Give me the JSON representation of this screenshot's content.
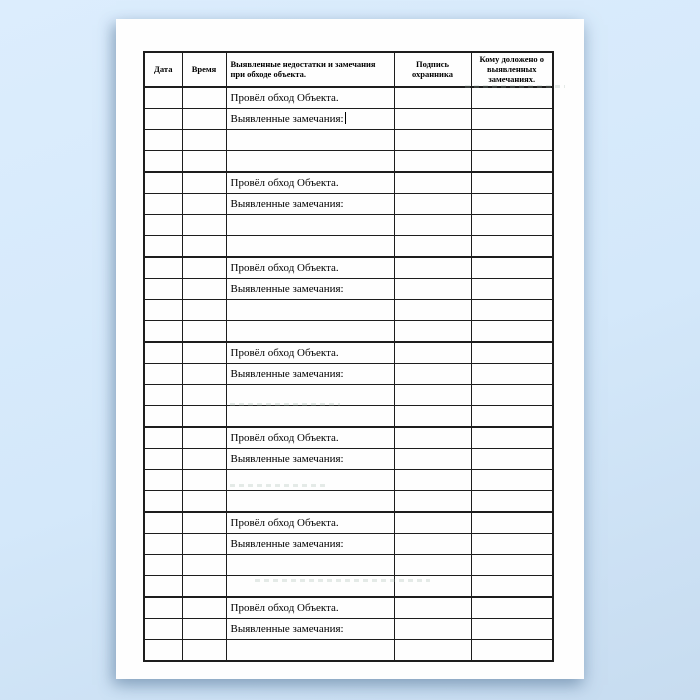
{
  "page": {
    "background_color": "#d4e8fa",
    "paper_color": "#fefefe",
    "border_color": "#1d1d1d"
  },
  "table": {
    "columns": [
      {
        "key": "date",
        "label": "Дата"
      },
      {
        "key": "time",
        "label": "Время"
      },
      {
        "key": "remarks",
        "label": "Выявленные недостатки и замечания\nпри обходе объекта."
      },
      {
        "key": "signature",
        "label": "Подпись\nохранника"
      },
      {
        "key": "reported",
        "label": "Кому доложено о\nвыявленных\nзамечаниях."
      }
    ],
    "entry_row_1": "Провёл обход Объекта.",
    "entry_row_2": "Выявленные замечания:",
    "blocks": [
      {
        "rows": [
          "Провёл обход Объекта.",
          "Выявленные замечания:"
        ],
        "empty_rows": 2,
        "cursor_after_row": 1
      },
      {
        "rows": [
          "Провёл обход Объекта.",
          "Выявленные замечания:"
        ],
        "empty_rows": 2
      },
      {
        "rows": [
          "Провёл обход Объекта.",
          "Выявленные замечания:"
        ],
        "empty_rows": 2
      },
      {
        "rows": [
          "Провёл обход Объекта.",
          "Выявленные замечания:"
        ],
        "empty_rows": 2
      },
      {
        "rows": [
          "Провёл обход Объекта.",
          "Выявленные замечания:"
        ],
        "empty_rows": 2
      },
      {
        "rows": [
          "Провёл обход Объекта.",
          "Выявленные замечания:"
        ],
        "empty_rows": 2
      },
      {
        "rows": [
          "Провёл обход Объекта.",
          "Выявленные замечания:"
        ],
        "empty_rows": 1
      }
    ]
  }
}
